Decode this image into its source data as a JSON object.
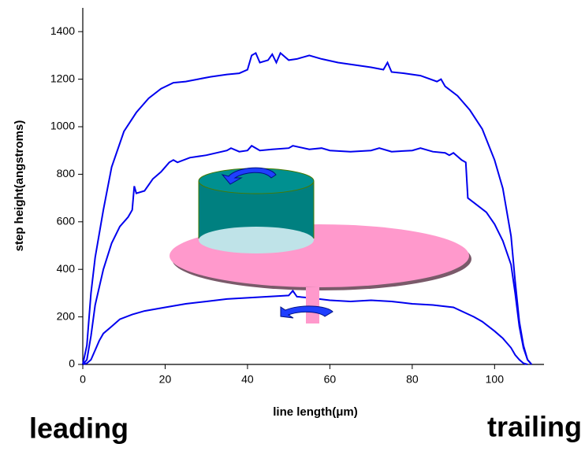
{
  "chart_data": {
    "type": "line",
    "x_label": "line length(μm)",
    "y_label": "step height(angstroms)",
    "annotations": [
      "leading",
      "trailing"
    ],
    "xlim": [
      0,
      112
    ],
    "xticks": [
      0,
      20,
      40,
      60,
      80,
      100
    ],
    "ylim": [
      0,
      1500
    ],
    "yticks": [
      0,
      200,
      400,
      600,
      800,
      1000,
      1200,
      1400
    ],
    "grid": false,
    "series": [
      {
        "color": "#0000ee",
        "x": [
          0,
          1,
          2,
          3,
          5,
          7,
          10,
          13,
          16,
          19,
          22,
          25,
          28,
          31,
          35,
          38,
          40,
          41,
          42,
          43,
          45,
          46,
          47,
          48,
          50,
          52,
          55,
          58,
          62,
          66,
          70,
          73,
          74,
          75,
          78,
          82,
          86,
          87,
          88,
          91,
          94,
          97,
          100,
          102,
          104,
          105,
          106,
          107,
          108,
          109
        ],
        "values": [
          0,
          80,
          300,
          450,
          650,
          830,
          980,
          1060,
          1120,
          1160,
          1185,
          1190,
          1200,
          1210,
          1220,
          1225,
          1240,
          1300,
          1310,
          1270,
          1280,
          1305,
          1270,
          1310,
          1280,
          1285,
          1300,
          1285,
          1270,
          1260,
          1250,
          1240,
          1270,
          1230,
          1225,
          1215,
          1190,
          1200,
          1170,
          1130,
          1070,
          990,
          860,
          740,
          540,
          350,
          180,
          80,
          20,
          0
        ]
      },
      {
        "color": "#0000ee",
        "x": [
          0,
          1,
          2,
          3,
          5,
          7,
          9,
          11,
          12,
          12.5,
          13,
          15,
          17,
          19,
          20,
          21,
          22,
          23,
          26,
          30,
          35,
          36,
          38,
          40,
          41,
          43,
          46,
          50,
          51,
          55,
          58,
          60,
          65,
          70,
          72,
          75,
          80,
          82,
          85,
          88,
          89,
          90,
          92,
          93,
          93.5,
          95,
          98,
          100,
          102,
          104,
          105,
          106,
          107,
          108,
          109
        ],
        "values": [
          0,
          20,
          120,
          250,
          400,
          510,
          580,
          620,
          650,
          750,
          720,
          730,
          780,
          810,
          830,
          850,
          860,
          850,
          870,
          880,
          900,
          910,
          895,
          900,
          920,
          900,
          905,
          910,
          920,
          905,
          910,
          900,
          895,
          900,
          910,
          895,
          900,
          910,
          895,
          890,
          880,
          890,
          860,
          850,
          700,
          680,
          640,
          590,
          520,
          420,
          300,
          160,
          70,
          20,
          0
        ]
      },
      {
        "color": "#0000ee",
        "x": [
          0,
          1,
          2,
          3,
          4,
          5,
          7,
          9,
          12,
          15,
          20,
          25,
          30,
          35,
          40,
          45,
          50,
          51,
          52,
          55,
          60,
          65,
          70,
          75,
          80,
          85,
          90,
          95,
          97,
          100,
          102,
          104,
          105,
          106,
          107,
          108
        ],
        "values": [
          0,
          5,
          20,
          60,
          100,
          130,
          160,
          190,
          210,
          225,
          240,
          255,
          265,
          275,
          280,
          285,
          290,
          310,
          285,
          280,
          270,
          265,
          270,
          265,
          255,
          250,
          240,
          200,
          180,
          140,
          110,
          70,
          40,
          20,
          5,
          0
        ]
      }
    ]
  }
}
